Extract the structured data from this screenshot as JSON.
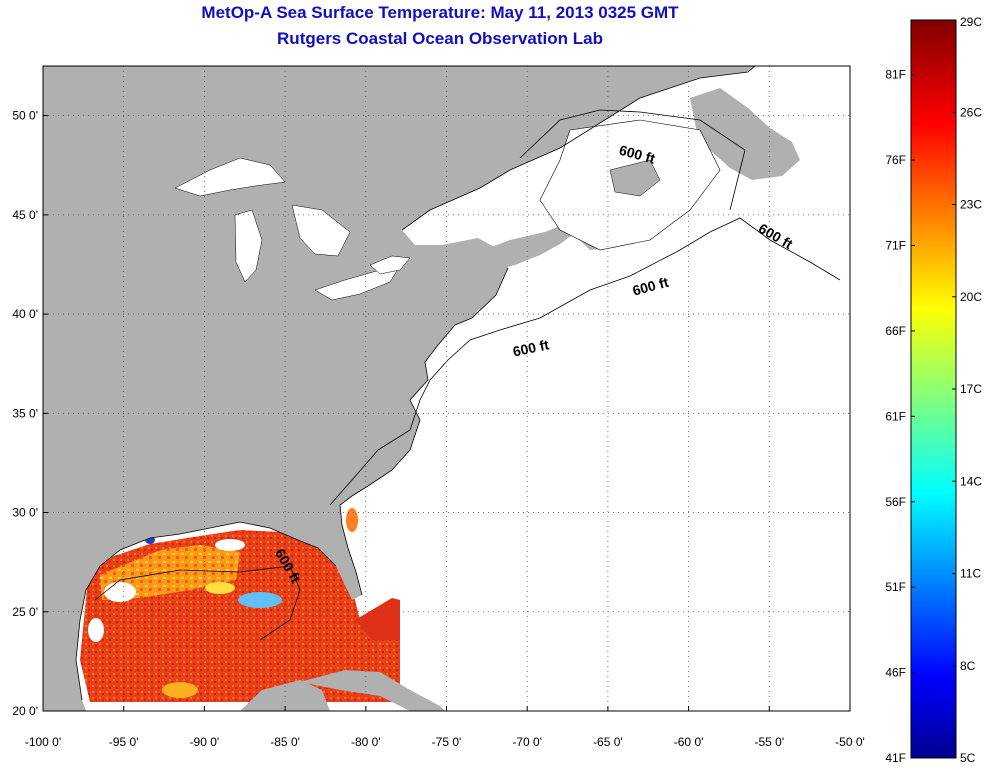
{
  "header": {
    "title": "MetOp-A Sea Surface Temperature:  May 11, 2013 0325 GMT",
    "subtitle": "Rutgers Coastal Ocean Observation Lab"
  },
  "map": {
    "lon_range": [
      -100,
      -50
    ],
    "lat_range": [
      20,
      52.5
    ],
    "x_ticks": [
      "-100 0'",
      "-95 0'",
      "-90 0'",
      "-85 0'",
      "-80 0'",
      "-75 0'",
      "-70 0'",
      "-65 0'",
      "-60 0'",
      "-55 0'",
      "-50 0'"
    ],
    "y_ticks": [
      "20 0'",
      "25 0'",
      "30 0'",
      "35 0'",
      "40 0'",
      "45 0'",
      "50 0'"
    ],
    "grid": "dotted",
    "land_color": "#b0b0b0",
    "ocean_color": "#ffffff",
    "contour_labels": [
      "600 ft",
      "600 ft",
      "600 ft",
      "600 ft",
      "600 ft"
    ]
  },
  "colorbar": {
    "celsius_labels": [
      "29C",
      "26C",
      "23C",
      "20C",
      "17C",
      "14C",
      "11C",
      "8C",
      "5C"
    ],
    "fahrenheit_labels": [
      "81F",
      "76F",
      "71F",
      "66F",
      "61F",
      "56F",
      "51F",
      "46F",
      "41F"
    ],
    "range_c": [
      5,
      29
    ],
    "colormap": "jet"
  }
}
